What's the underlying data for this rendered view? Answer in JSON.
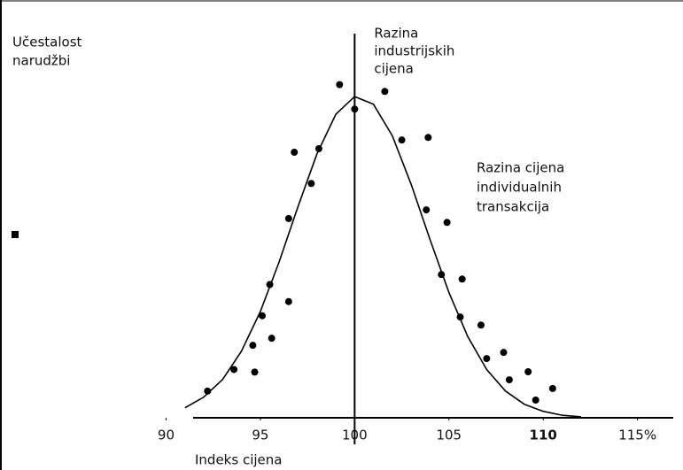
{
  "chart_data": {
    "type": "scatter",
    "y_label": [
      "Učestalost",
      "narudžbi"
    ],
    "x_label": "Indeks cijena",
    "xlim": [
      84.2,
      117.6
    ],
    "ylim": [
      0,
      110
    ],
    "xticks": [
      90,
      95,
      100,
      105,
      110,
      {
        "value": 115,
        "label": "115%"
      }
    ],
    "color": "#000000",
    "x": [
      92.2,
      93.6,
      94.7,
      94.6,
      95.1,
      95.5,
      95.6,
      96.5,
      96.5,
      96.8,
      97.7,
      98.1,
      99.2,
      100.0,
      101.6,
      102.5,
      103.9,
      103.8,
      104.9,
      104.6,
      105.7,
      105.6,
      106.7,
      107.0,
      107.9,
      108.2,
      109.2,
      109.6,
      110.5
    ],
    "values": [
      8.3,
      15,
      14.2,
      22.5,
      31.7,
      41.4,
      24.7,
      36.1,
      61.9,
      82.5,
      72.8,
      83.6,
      103.5,
      95.9,
      101.4,
      86.3,
      87.1,
      64.6,
      60.7,
      44.5,
      43.1,
      31.3,
      28.8,
      18.4,
      20.3,
      11.8,
      14.3,
      5.5,
      9.1
    ],
    "curve": {
      "x": [
        91,
        92,
        93,
        94,
        95,
        96,
        97,
        98,
        99,
        100,
        101,
        102,
        103,
        104,
        105,
        106,
        107,
        108,
        109,
        110,
        111,
        112
      ],
      "values": [
        3.1,
        6.4,
        11.9,
        20.7,
        33.0,
        48.5,
        65.7,
        82.0,
        94.3,
        99.8,
        97.4,
        87.6,
        72.5,
        55.3,
        38.9,
        25.2,
        15.0,
        8.3,
        4.2,
        2.0,
        0.8,
        0.3
      ]
    },
    "reference_line": {
      "x": 100,
      "label": [
        "Razina",
        "industrijskih",
        "cijena"
      ]
    },
    "annotation": [
      "Razina cijena",
      "individualnih",
      "transakcija"
    ]
  }
}
